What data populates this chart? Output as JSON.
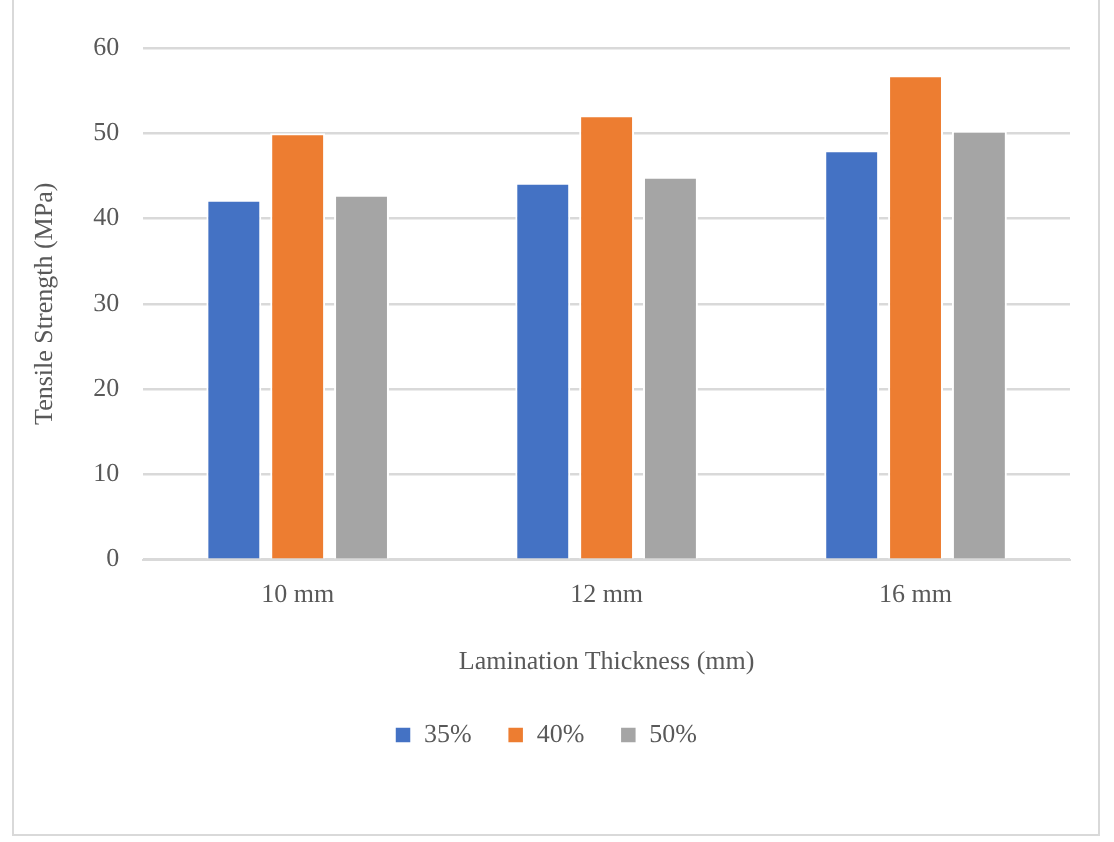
{
  "chart_data": {
    "type": "bar",
    "xlabel": "Lamination Thickness (mm)",
    "ylabel": "Tensile Strength (MPa)",
    "categories": [
      "10 mm",
      "12 mm",
      "16 mm"
    ],
    "series": [
      {
        "name": "35%",
        "color": "#4472c4",
        "values": [
          42.2,
          44.2,
          48.0
        ]
      },
      {
        "name": "40%",
        "color": "#ed7d31",
        "values": [
          50.0,
          52.1,
          56.8
        ]
      },
      {
        "name": "50%",
        "color": "#a5a5a5",
        "values": [
          42.8,
          44.9,
          50.3
        ]
      }
    ],
    "ylim": [
      0,
      60
    ],
    "yticks": [
      0,
      10,
      20,
      30,
      40,
      50,
      60
    ],
    "grid": "y",
    "legend": "bottom"
  }
}
